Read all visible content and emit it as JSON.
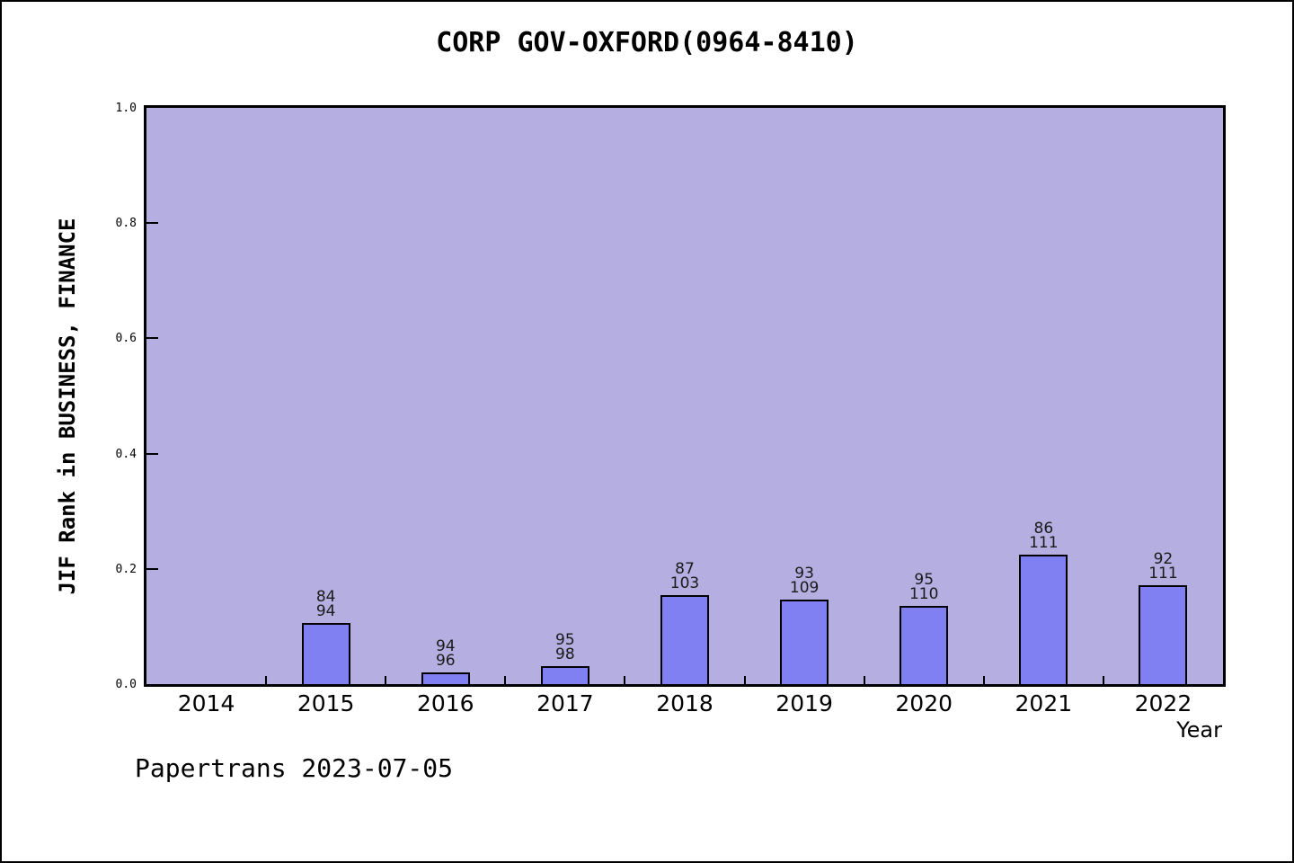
{
  "footer": "Papertrans 2023-07-05",
  "colors": {
    "plot_background": "#b5aee0",
    "bar_fill": "#8080f2",
    "bar_border": "#000000",
    "axis": "#000000",
    "text": "#000000"
  },
  "chart_data": {
    "type": "bar",
    "title": "CORP GOV-OXFORD(0964-8410)",
    "xlabel": "Year",
    "ylabel": "JIF Rank in BUSINESS, FINANCE",
    "categories": [
      "2014",
      "2015",
      "2016",
      "2017",
      "2018",
      "2019",
      "2020",
      "2021",
      "2022"
    ],
    "ylim": [
      0.0,
      1.0
    ],
    "ytick_labels": [
      "0.0",
      "0.2",
      "0.4",
      "0.6",
      "0.8",
      "1.0"
    ],
    "yticks": [
      0.0,
      0.2,
      0.4,
      0.6,
      0.8,
      1.0
    ],
    "grid": false,
    "legend": "none",
    "bar_value_rule": "value = 1 - rank / out_of",
    "points": [
      {
        "year": "2015",
        "rank": "84",
        "out_of": "94",
        "value": 0.106
      },
      {
        "year": "2016",
        "rank": "94",
        "out_of": "96",
        "value": 0.021
      },
      {
        "year": "2017",
        "rank": "95",
        "out_of": "98",
        "value": 0.031
      },
      {
        "year": "2018",
        "rank": "87",
        "out_of": "103",
        "value": 0.155
      },
      {
        "year": "2019",
        "rank": "93",
        "out_of": "109",
        "value": 0.147
      },
      {
        "year": "2020",
        "rank": "95",
        "out_of": "110",
        "value": 0.136
      },
      {
        "year": "2021",
        "rank": "86",
        "out_of": "111",
        "value": 0.225
      },
      {
        "year": "2022",
        "rank": "92",
        "out_of": "111",
        "value": 0.171
      }
    ]
  }
}
